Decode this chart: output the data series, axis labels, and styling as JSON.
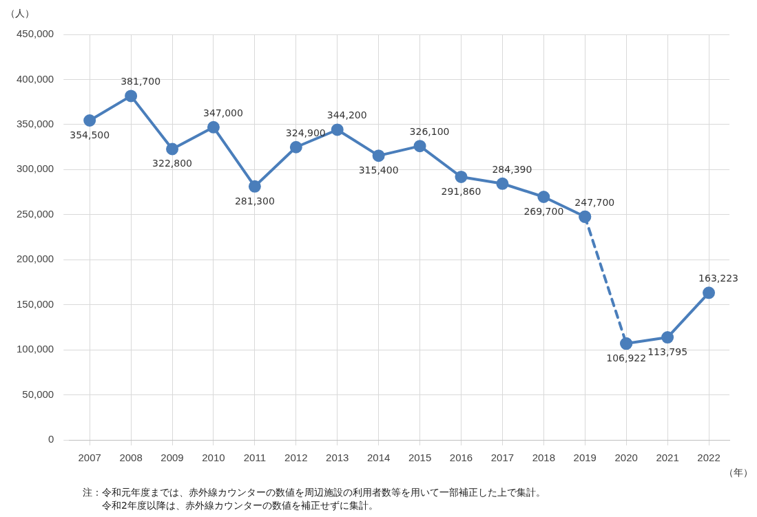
{
  "chart_data": {
    "type": "line",
    "ylabel": "（人）",
    "xlabel": "（年）",
    "categories": [
      "2007",
      "2008",
      "2009",
      "2010",
      "2011",
      "2012",
      "2013",
      "2014",
      "2015",
      "2016",
      "2017",
      "2018",
      "2019",
      "2020",
      "2021",
      "2022"
    ],
    "series": [
      {
        "color": "#4a7ebb",
        "values": [
          354500,
          381700,
          322800,
          347000,
          281300,
          324900,
          344200,
          315400,
          326100,
          291860,
          284390,
          269700,
          247700,
          null,
          null,
          null
        ],
        "value_labels": [
          "354,500",
          "381,700",
          "322,800",
          "347,000",
          "281,300",
          "324,900",
          "344,200",
          "315,400",
          "326,100",
          "291,860",
          "284,390",
          "269,700",
          "247,700",
          null,
          null,
          null
        ]
      },
      {
        "color": "#4a7ebb",
        "line_style": "dashed",
        "values": [
          null,
          null,
          null,
          null,
          null,
          null,
          null,
          null,
          null,
          null,
          null,
          null,
          247700,
          106922,
          null,
          null
        ],
        "value_labels": [
          null,
          null,
          null,
          null,
          null,
          null,
          null,
          null,
          null,
          null,
          null,
          null,
          null,
          null,
          null,
          null
        ]
      },
      {
        "color": "#4a7ebb",
        "values": [
          null,
          null,
          null,
          null,
          null,
          null,
          null,
          null,
          null,
          null,
          null,
          null,
          null,
          106922,
          113795,
          163223
        ],
        "value_labels": [
          null,
          null,
          null,
          null,
          null,
          null,
          null,
          null,
          null,
          null,
          null,
          null,
          null,
          "106,922",
          "113,795",
          "163,223"
        ]
      }
    ],
    "ylim": [
      0,
      450000
    ],
    "yticks": [
      0,
      {
        "value": 50000,
        "label": "50,000"
      },
      {
        "value": 100000,
        "label": "100,000"
      },
      {
        "value": 150000,
        "label": "150,000"
      },
      {
        "value": 200000,
        "label": "200,000"
      },
      {
        "value": 250000,
        "label": "250,000"
      },
      {
        "value": 300000,
        "label": "300,000"
      },
      {
        "value": 350000,
        "label": "350,000"
      },
      {
        "value": 400000,
        "label": "400,000"
      },
      {
        "value": 450000,
        "label": "450,000"
      }
    ],
    "grid": true,
    "marker": "circle",
    "line_style": "solid",
    "annotations": [
      "注：令和元年度までは、赤外線カウンターの数値を周辺施設の利用者数等を用いて一部補正した上で集計。",
      "令和2年度以降は、赤外線カウンターの数値を補正せずに集計。"
    ]
  }
}
